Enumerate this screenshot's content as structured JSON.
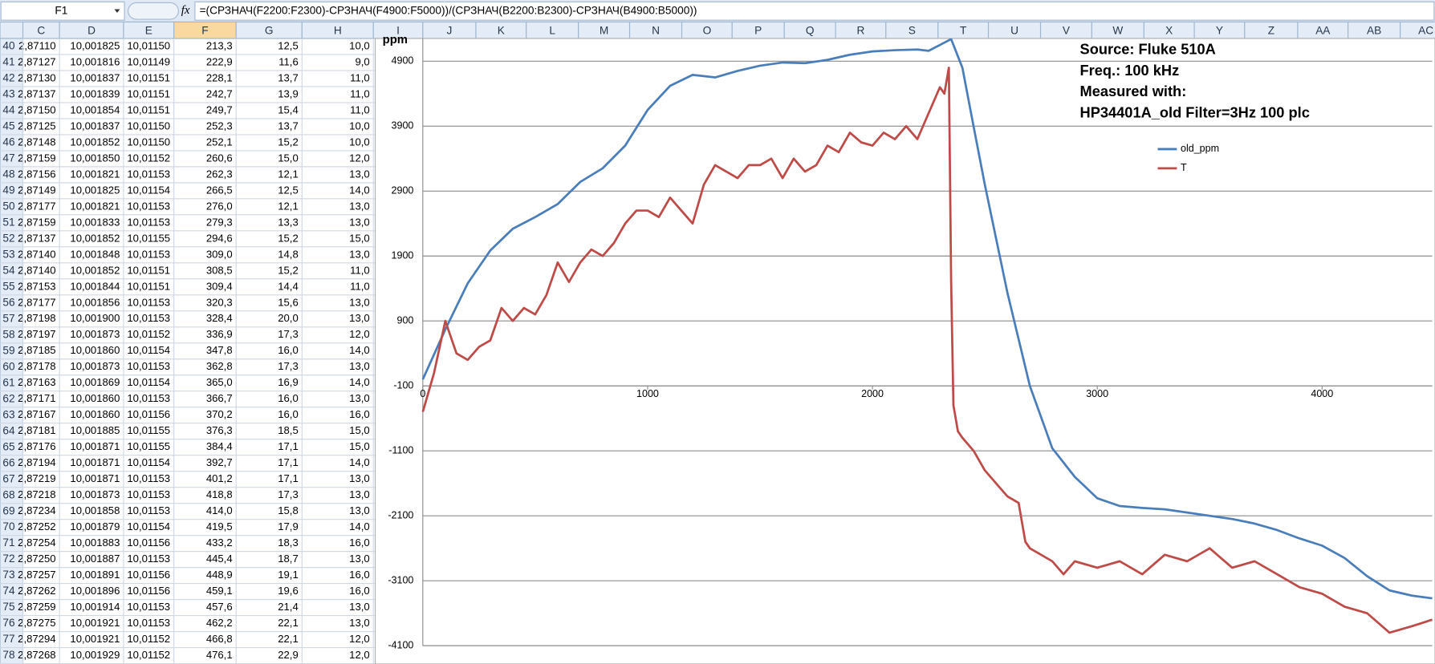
{
  "sheet": {
    "name_box": "F1",
    "formula": "=(СРЗНАЧ(F2200:F2300)-СРЗНАЧ(F4900:F5000))/(СРЗНАЧ(B2200:B2300)-СРЗНАЧ(B4900:B5000))",
    "columns": [
      "C",
      "D",
      "E",
      "F",
      "G",
      "H",
      "I",
      "J",
      "K",
      "L",
      "M",
      "N",
      "O",
      "P",
      "Q",
      "R",
      "S",
      "T",
      "U",
      "V",
      "W",
      "X",
      "Y",
      "Z",
      "AA",
      "AB",
      "AC"
    ],
    "rows": [
      [
        "40",
        "2,87110",
        "10,001825",
        "10,01150",
        "213,3",
        "12,5",
        "10,0"
      ],
      [
        "41",
        "2,87127",
        "10,001816",
        "10,01149",
        "222,9",
        "11,6",
        "9,0"
      ],
      [
        "42",
        "2,87130",
        "10,001837",
        "10,01151",
        "228,1",
        "13,7",
        "11,0"
      ],
      [
        "43",
        "2,87137",
        "10,001839",
        "10,01151",
        "242,7",
        "13,9",
        "11,0"
      ],
      [
        "44",
        "2,87150",
        "10,001854",
        "10,01151",
        "249,7",
        "15,4",
        "11,0"
      ],
      [
        "45",
        "2,87125",
        "10,001837",
        "10,01150",
        "252,3",
        "13,7",
        "10,0"
      ],
      [
        "46",
        "2,87148",
        "10,001852",
        "10,01150",
        "252,1",
        "15,2",
        "10,0"
      ],
      [
        "47",
        "2,87159",
        "10,001850",
        "10,01152",
        "260,6",
        "15,0",
        "12,0"
      ],
      [
        "48",
        "2,87156",
        "10,001821",
        "10,01153",
        "262,3",
        "12,1",
        "13,0"
      ],
      [
        "49",
        "2,87149",
        "10,001825",
        "10,01154",
        "266,5",
        "12,5",
        "14,0"
      ],
      [
        "50",
        "2,87177",
        "10,001821",
        "10,01153",
        "276,0",
        "12,1",
        "13,0"
      ],
      [
        "51",
        "2,87159",
        "10,001833",
        "10,01153",
        "279,3",
        "13,3",
        "13,0"
      ],
      [
        "52",
        "2,87137",
        "10,001852",
        "10,01155",
        "294,6",
        "15,2",
        "15,0"
      ],
      [
        "53",
        "2,87140",
        "10,001848",
        "10,01153",
        "309,0",
        "14,8",
        "13,0"
      ],
      [
        "54",
        "2,87140",
        "10,001852",
        "10,01151",
        "308,5",
        "15,2",
        "11,0"
      ],
      [
        "55",
        "2,87153",
        "10,001844",
        "10,01151",
        "309,4",
        "14,4",
        "11,0"
      ],
      [
        "56",
        "2,87177",
        "10,001856",
        "10,01153",
        "320,3",
        "15,6",
        "13,0"
      ],
      [
        "57",
        "2,87198",
        "10,001900",
        "10,01153",
        "328,4",
        "20,0",
        "13,0"
      ],
      [
        "58",
        "2,87197",
        "10,001873",
        "10,01152",
        "336,9",
        "17,3",
        "12,0"
      ],
      [
        "59",
        "2,87185",
        "10,001860",
        "10,01154",
        "347,8",
        "16,0",
        "14,0"
      ],
      [
        "60",
        "2,87178",
        "10,001873",
        "10,01153",
        "362,8",
        "17,3",
        "13,0"
      ],
      [
        "61",
        "2,87163",
        "10,001869",
        "10,01154",
        "365,0",
        "16,9",
        "14,0"
      ],
      [
        "62",
        "2,87171",
        "10,001860",
        "10,01153",
        "366,7",
        "16,0",
        "13,0"
      ],
      [
        "63",
        "2,87167",
        "10,001860",
        "10,01156",
        "370,2",
        "16,0",
        "16,0"
      ],
      [
        "64",
        "2,87181",
        "10,001885",
        "10,01155",
        "376,3",
        "18,5",
        "15,0"
      ],
      [
        "65",
        "2,87176",
        "10,001871",
        "10,01155",
        "384,4",
        "17,1",
        "15,0"
      ],
      [
        "66",
        "2,87194",
        "10,001871",
        "10,01154",
        "392,7",
        "17,1",
        "14,0"
      ],
      [
        "67",
        "2,87219",
        "10,001871",
        "10,01153",
        "401,2",
        "17,1",
        "13,0"
      ],
      [
        "68",
        "2,87218",
        "10,001873",
        "10,01153",
        "418,8",
        "17,3",
        "13,0"
      ],
      [
        "69",
        "2,87234",
        "10,001858",
        "10,01153",
        "414,0",
        "15,8",
        "13,0"
      ],
      [
        "70",
        "2,87252",
        "10,001879",
        "10,01154",
        "419,5",
        "17,9",
        "14,0"
      ],
      [
        "71",
        "2,87254",
        "10,001883",
        "10,01156",
        "433,2",
        "18,3",
        "16,0"
      ],
      [
        "72",
        "2,87250",
        "10,001887",
        "10,01153",
        "445,4",
        "18,7",
        "13,0"
      ],
      [
        "73",
        "2,87257",
        "10,001891",
        "10,01156",
        "448,9",
        "19,1",
        "16,0"
      ],
      [
        "74",
        "2,87262",
        "10,001896",
        "10,01156",
        "459,1",
        "19,6",
        "16,0"
      ],
      [
        "75",
        "2,87259",
        "10,001914",
        "10,01153",
        "457,6",
        "21,4",
        "13,0"
      ],
      [
        "76",
        "2,87275",
        "10,001921",
        "10,01153",
        "462,2",
        "22,1",
        "13,0"
      ],
      [
        "77",
        "2,87294",
        "10,001921",
        "10,01152",
        "466,8",
        "22,1",
        "12,0"
      ],
      [
        "78",
        "2,87268",
        "10,001929",
        "10,01152",
        "476,1",
        "22,9",
        "12,0"
      ]
    ]
  },
  "chart_data": {
    "type": "line",
    "y_label": "ppm",
    "annotations": [
      "Source:  Fluke 510A",
      "Freq.: 100 kHz",
      "Measured with:",
      "HP34401A_old Filter=3Hz  100 plc"
    ],
    "xlim": [
      0,
      4490
    ],
    "ylim": [
      -4100,
      5250
    ],
    "xticks": [
      0,
      1000,
      2000,
      3000,
      4000
    ],
    "yticks": [
      -4100,
      -3100,
      -2100,
      -1100,
      -100,
      900,
      1900,
      2900,
      3900,
      4900
    ],
    "x_axis_crosses": -100,
    "grid": true,
    "series": [
      {
        "name": "old_ppm",
        "color": "#4a7ebb",
        "x": [
          0,
          100,
          200,
          300,
          400,
          500,
          600,
          700,
          800,
          900,
          1000,
          1100,
          1200,
          1300,
          1400,
          1500,
          1600,
          1700,
          1800,
          1900,
          2000,
          2100,
          2200,
          2250,
          2300,
          2350,
          2400,
          2450,
          2500,
          2600,
          2700,
          2800,
          2900,
          3000,
          3100,
          3200,
          3300,
          3400,
          3500,
          3600,
          3700,
          3800,
          3900,
          4000,
          4100,
          4200,
          4300,
          4400,
          4490
        ],
        "values": [
          0,
          770,
          1480,
          1985,
          2320,
          2500,
          2700,
          3040,
          3250,
          3600,
          4150,
          4520,
          4690,
          4650,
          4750,
          4830,
          4880,
          4870,
          4920,
          5000,
          5050,
          5070,
          5080,
          5060,
          5150,
          5240,
          4800,
          3890,
          3000,
          1340,
          -100,
          -1060,
          -1500,
          -1830,
          -1950,
          -1980,
          -2000,
          -2050,
          -2100,
          -2150,
          -2220,
          -2320,
          -2450,
          -2560,
          -2750,
          -3030,
          -3250,
          -3330,
          -3370
        ]
      },
      {
        "name": "T",
        "color": "#be4b48",
        "x": [
          0,
          50,
          100,
          150,
          200,
          250,
          300,
          350,
          400,
          450,
          500,
          550,
          600,
          650,
          700,
          750,
          800,
          850,
          900,
          950,
          1000,
          1050,
          1100,
          1150,
          1200,
          1250,
          1300,
          1350,
          1400,
          1450,
          1500,
          1550,
          1600,
          1650,
          1700,
          1750,
          1800,
          1850,
          1900,
          1950,
          2000,
          2050,
          2100,
          2150,
          2200,
          2250,
          2300,
          2320,
          2340,
          2350,
          2360,
          2380,
          2400,
          2450,
          2500,
          2550,
          2600,
          2650,
          2680,
          2700,
          2800,
          2850,
          2900,
          3000,
          3100,
          3200,
          3300,
          3400,
          3500,
          3600,
          3700,
          3800,
          3900,
          4000,
          4100,
          4200,
          4300,
          4400,
          4490
        ],
        "values": [
          -500,
          100,
          900,
          400,
          300,
          500,
          600,
          1100,
          900,
          1100,
          1000,
          1300,
          1800,
          1500,
          1800,
          2000,
          1900,
          2100,
          2400,
          2600,
          2600,
          2500,
          2800,
          2600,
          2400,
          3000,
          3300,
          3200,
          3100,
          3300,
          3300,
          3400,
          3100,
          3400,
          3200,
          3300,
          3600,
          3500,
          3800,
          3650,
          3600,
          3800,
          3700,
          3900,
          3700,
          4100,
          4500,
          4400,
          4800,
          1500,
          -400,
          -800,
          -900,
          -1100,
          -1400,
          -1600,
          -1800,
          -1900,
          -2500,
          -2600,
          -2800,
          -3000,
          -2800,
          -2900,
          -2800,
          -3000,
          -2700,
          -2800,
          -2600,
          -2900,
          -2800,
          -3000,
          -3200,
          -3300,
          -3500,
          -3600,
          -3900,
          -3800,
          -3700
        ]
      }
    ]
  }
}
